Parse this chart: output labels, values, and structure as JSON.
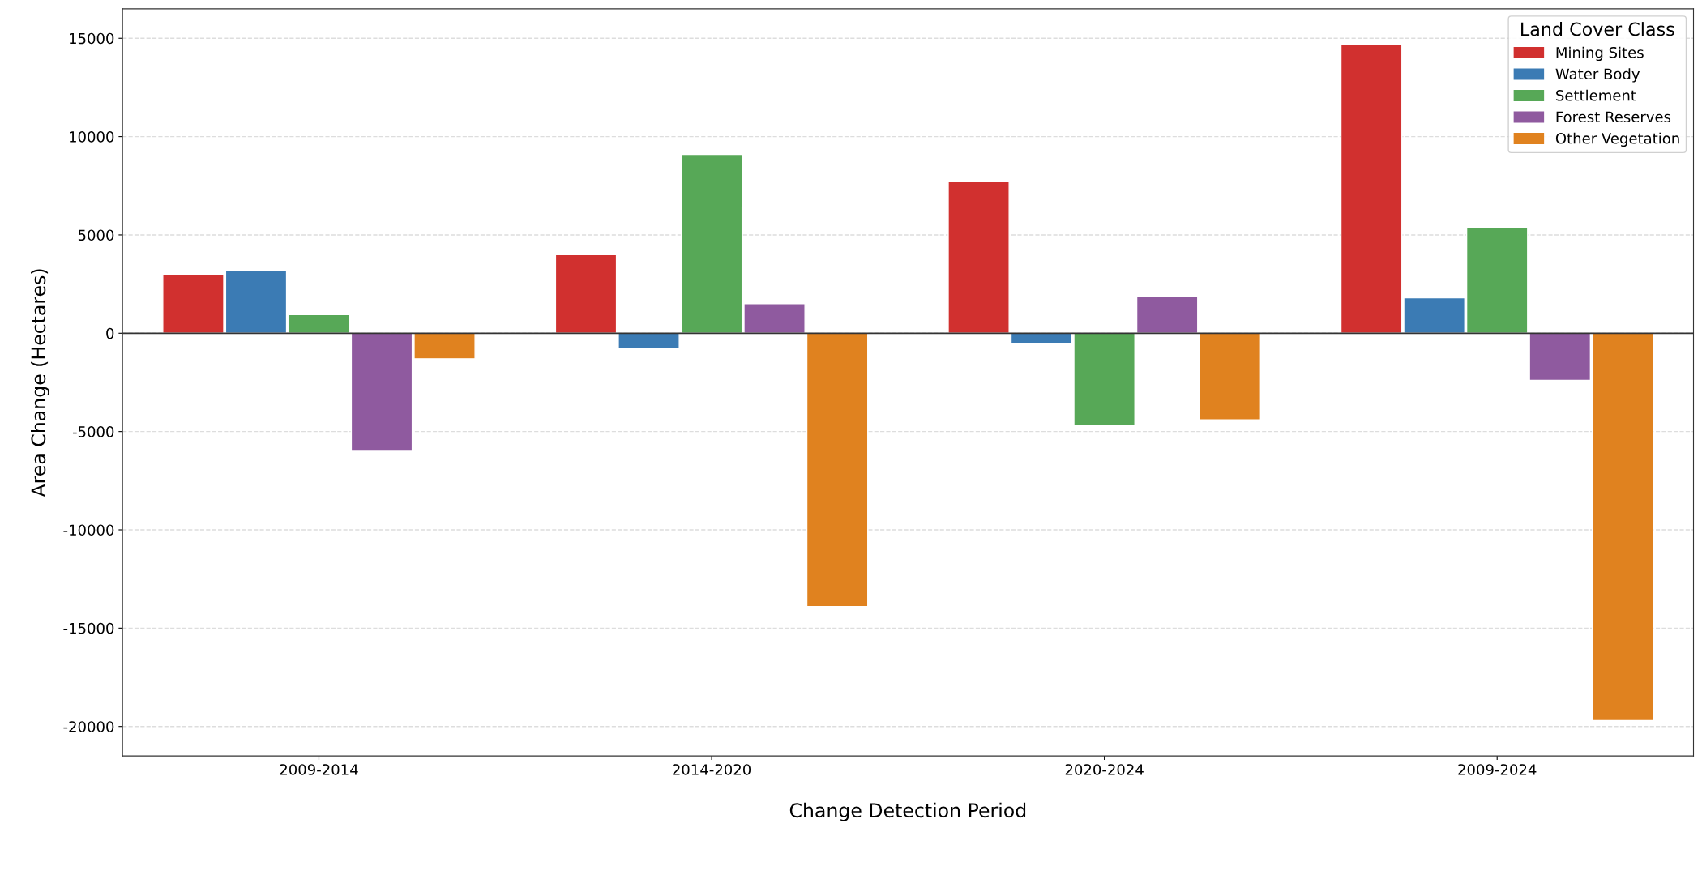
{
  "chart_data": {
    "type": "bar",
    "xlabel": "Change Detection Period",
    "ylabel": "Area Change (Hectares)",
    "legend_title": "Land Cover Class",
    "legend": "top right",
    "grid": "y",
    "categories": [
      "2009-2014",
      "2014-2020",
      "2020-2024",
      "2009-2024"
    ],
    "series": [
      {
        "name": "Mining Sites",
        "color": "#d1302f",
        "values": [
          3000,
          4000,
          7700,
          14700
        ]
      },
      {
        "name": "Water Body",
        "color": "#3b7bb4",
        "values": [
          3200,
          -800,
          -550,
          1800
        ]
      },
      {
        "name": "Settlement",
        "color": "#57a857",
        "values": [
          950,
          9100,
          -4700,
          5400
        ]
      },
      {
        "name": "Forest Reserves",
        "color": "#8f5a9f",
        "values": [
          -6000,
          1500,
          1900,
          -2400
        ]
      },
      {
        "name": "Other Vegetation",
        "color": "#e0821f",
        "values": [
          -1300,
          -13900,
          -4400,
          -19700
        ]
      }
    ],
    "ylim": [
      -21500,
      16500
    ],
    "yticks": [
      -20000,
      -15000,
      -10000,
      -5000,
      0,
      5000,
      10000,
      15000
    ],
    "ref_lines": [
      {
        "axis": "y",
        "value": 0,
        "color": "#333333",
        "line_style": "solid"
      }
    ]
  }
}
